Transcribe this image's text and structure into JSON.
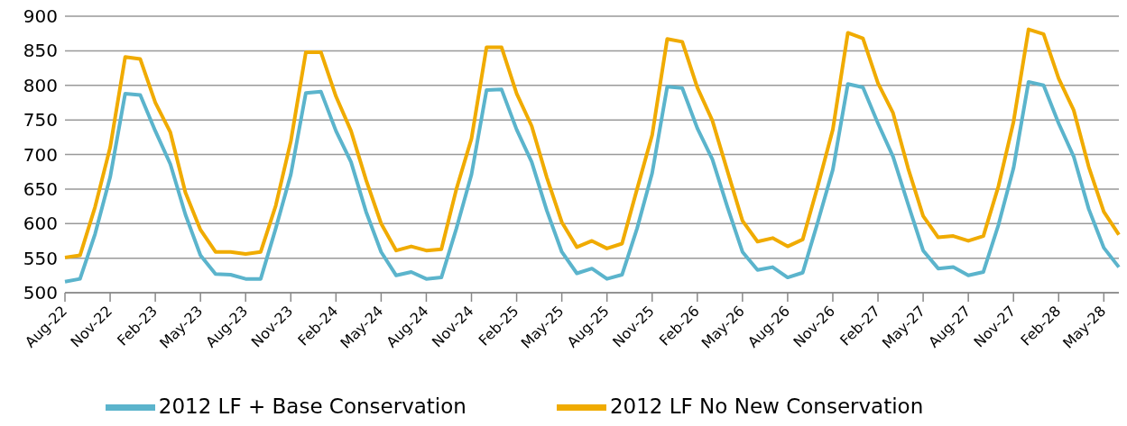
{
  "chart_data": {
    "type": "line",
    "categories": [
      "Aug-22",
      null,
      null,
      "Nov-22",
      null,
      null,
      "Feb-23",
      null,
      null,
      "May-23",
      null,
      null,
      "Aug-23",
      null,
      null,
      "Nov-23",
      null,
      null,
      "Feb-24",
      null,
      null,
      "May-24",
      null,
      null,
      "Aug-24",
      null,
      null,
      "Nov-24",
      null,
      null,
      "Feb-25",
      null,
      null,
      "May-25",
      null,
      null,
      "Aug-25",
      null,
      null,
      "Nov-25",
      null,
      null,
      "Feb-26",
      null,
      null,
      "May-26",
      null,
      null,
      "Aug-26",
      null,
      null,
      "Nov-26",
      null,
      null,
      "Feb-27",
      null,
      null,
      "May-27",
      null,
      null,
      "Aug-27",
      null,
      null,
      "Nov-27",
      null,
      null,
      "Feb-28",
      null,
      null,
      "May-28",
      null
    ],
    "series": [
      {
        "name": "2012 LF No New Conservation",
        "color": "#f0ab00",
        "values": [
          551,
          554,
          624,
          710,
          841,
          838,
          775,
          732,
          645,
          591,
          559,
          559,
          556,
          559,
          626,
          719,
          848,
          848,
          784,
          734,
          663,
          600,
          561,
          567,
          561,
          563,
          650,
          723,
          855,
          855,
          788,
          741,
          667,
          602,
          566,
          575,
          564,
          571,
          650,
          728,
          867,
          863,
          797,
          749,
          676,
          604,
          574,
          579,
          567,
          577,
          654,
          736,
          876,
          868,
          803,
          760,
          680,
          611,
          580,
          582,
          575,
          582,
          654,
          747,
          881,
          874,
          810,
          764,
          682,
          617,
          584
        ]
      },
      {
        "name": "2012 LF + Base Conservation",
        "color": "#5bb4cc",
        "values": [
          516,
          520,
          585,
          667,
          788,
          786,
          734,
          686,
          613,
          554,
          527,
          526,
          520,
          520,
          593,
          671,
          789,
          791,
          734,
          689,
          617,
          559,
          525,
          530,
          520,
          522,
          593,
          671,
          793,
          794,
          736,
          689,
          619,
          559,
          528,
          535,
          520,
          526,
          593,
          673,
          798,
          796,
          738,
          693,
          624,
          559,
          533,
          537,
          522,
          529,
          602,
          678,
          802,
          797,
          745,
          697,
          628,
          561,
          535,
          537,
          525,
          530,
          598,
          680,
          805,
          800,
          745,
          697,
          621,
          565,
          537
        ]
      }
    ],
    "ylim": [
      500,
      900
    ],
    "yticks": [
      500,
      550,
      600,
      650,
      700,
      750,
      800,
      850,
      900
    ],
    "grid": "y",
    "legend": "bottom",
    "marker": "none",
    "line_style": "solid"
  }
}
